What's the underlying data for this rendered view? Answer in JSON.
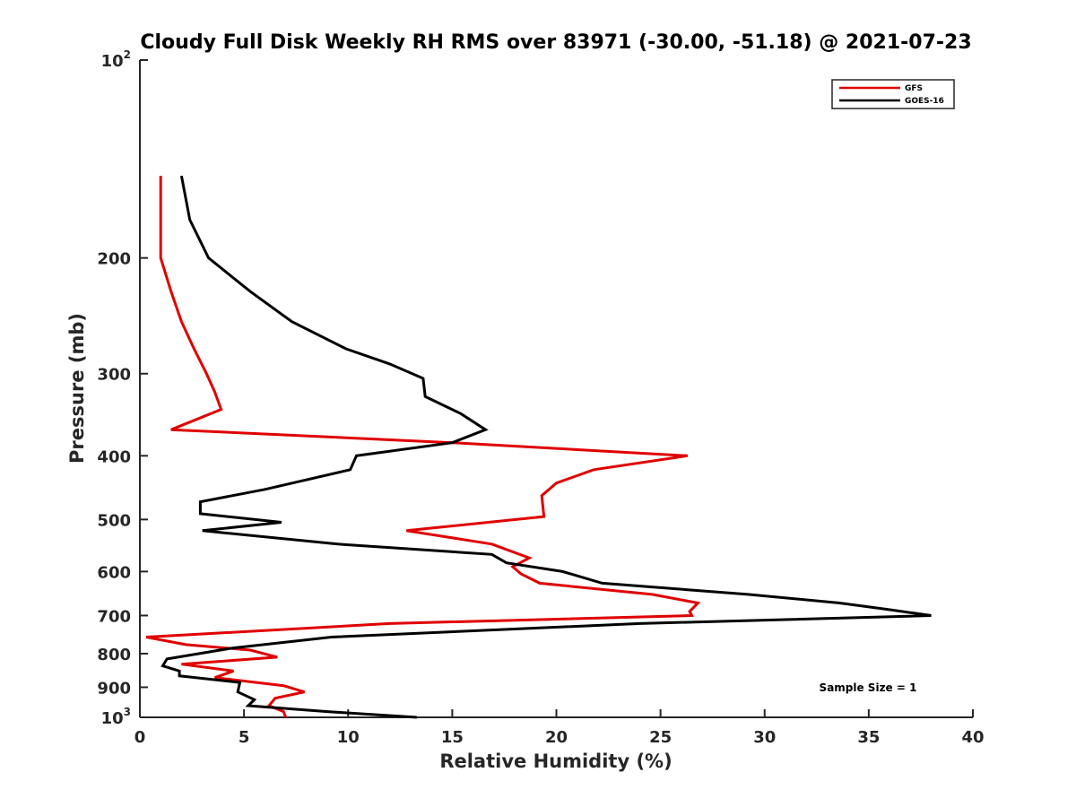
{
  "chart_data": {
    "type": "line",
    "title": "Cloudy Full Disk Weekly RH RMS over 83971 (-30.00, -51.18) @ 2021-07-23",
    "xlabel": "Relative Humidity (%)",
    "ylabel": "Pressure (mb)",
    "xlim": [
      0,
      40
    ],
    "ylim": [
      100,
      1000
    ],
    "y_scale": "log",
    "y_reversed": true,
    "grid": false,
    "legend_position": "top-right",
    "x_ticks": [
      "0",
      "5",
      "10",
      "15",
      "20",
      "25",
      "30",
      "35",
      "40"
    ],
    "y_ticks": [
      {
        "value": 100,
        "label": "10",
        "sup": "2"
      },
      {
        "value": 200,
        "label": "200",
        "sup": ""
      },
      {
        "value": 300,
        "label": "300",
        "sup": ""
      },
      {
        "value": 400,
        "label": "400",
        "sup": ""
      },
      {
        "value": 500,
        "label": "500",
        "sup": ""
      },
      {
        "value": 600,
        "label": "600",
        "sup": ""
      },
      {
        "value": 700,
        "label": "700",
        "sup": ""
      },
      {
        "value": 800,
        "label": "800",
        "sup": ""
      },
      {
        "value": 900,
        "label": "900",
        "sup": ""
      },
      {
        "value": 1000,
        "label": "10",
        "sup": "3"
      }
    ],
    "annotation": "Sample Size = 1",
    "series": [
      {
        "name": "GFS",
        "color": "#e00000",
        "points": [
          [
            1.0,
            150
          ],
          [
            1.0,
            175
          ],
          [
            1.0,
            200
          ],
          [
            1.5,
            225
          ],
          [
            2.0,
            250
          ],
          [
            2.6,
            275
          ],
          [
            3.2,
            300
          ],
          [
            3.6,
            320
          ],
          [
            3.9,
            340
          ],
          [
            1.5,
            365
          ],
          [
            15.0,
            382
          ],
          [
            26.3,
            400
          ],
          [
            21.8,
            420
          ],
          [
            20.0,
            440
          ],
          [
            19.3,
            460
          ],
          [
            19.4,
            495
          ],
          [
            12.8,
            520
          ],
          [
            16.9,
            545
          ],
          [
            18.7,
            572
          ],
          [
            17.9,
            590
          ],
          [
            18.3,
            605
          ],
          [
            19.2,
            625
          ],
          [
            24.6,
            650
          ],
          [
            26.8,
            670
          ],
          [
            26.4,
            690
          ],
          [
            26.5,
            700
          ],
          [
            12.0,
            720
          ],
          [
            0.3,
            755
          ],
          [
            2.2,
            775
          ],
          [
            5.3,
            790
          ],
          [
            6.6,
            810
          ],
          [
            2.0,
            830
          ],
          [
            4.5,
            850
          ],
          [
            3.6,
            870
          ],
          [
            6.9,
            895
          ],
          [
            7.9,
            915
          ],
          [
            6.5,
            935
          ],
          [
            6.2,
            960
          ],
          [
            6.9,
            980
          ],
          [
            7.0,
            1000
          ]
        ]
      },
      {
        "name": "GOES-16",
        "color": "#000000",
        "points": [
          [
            2.0,
            150
          ],
          [
            2.4,
            175
          ],
          [
            3.3,
            200
          ],
          [
            5.3,
            225
          ],
          [
            7.3,
            250
          ],
          [
            9.9,
            275
          ],
          [
            12.0,
            290
          ],
          [
            13.6,
            305
          ],
          [
            13.7,
            325
          ],
          [
            15.4,
            345
          ],
          [
            16.6,
            365
          ],
          [
            15.0,
            382
          ],
          [
            10.4,
            400
          ],
          [
            10.1,
            420
          ],
          [
            6.0,
            450
          ],
          [
            2.9,
            470
          ],
          [
            2.9,
            490
          ],
          [
            6.8,
            505
          ],
          [
            3.0,
            520
          ],
          [
            9.5,
            545
          ],
          [
            16.9,
            565
          ],
          [
            17.6,
            582
          ],
          [
            20.3,
            600
          ],
          [
            22.2,
            625
          ],
          [
            29.2,
            650
          ],
          [
            33.6,
            670
          ],
          [
            35.9,
            685
          ],
          [
            38.0,
            700
          ],
          [
            24.0,
            720
          ],
          [
            9.2,
            755
          ],
          [
            4.4,
            785
          ],
          [
            1.3,
            815
          ],
          [
            1.1,
            835
          ],
          [
            1.9,
            850
          ],
          [
            1.9,
            865
          ],
          [
            4.8,
            885
          ],
          [
            4.7,
            915
          ],
          [
            5.5,
            940
          ],
          [
            5.2,
            960
          ],
          [
            9.0,
            980
          ],
          [
            13.3,
            1000
          ]
        ]
      }
    ]
  }
}
